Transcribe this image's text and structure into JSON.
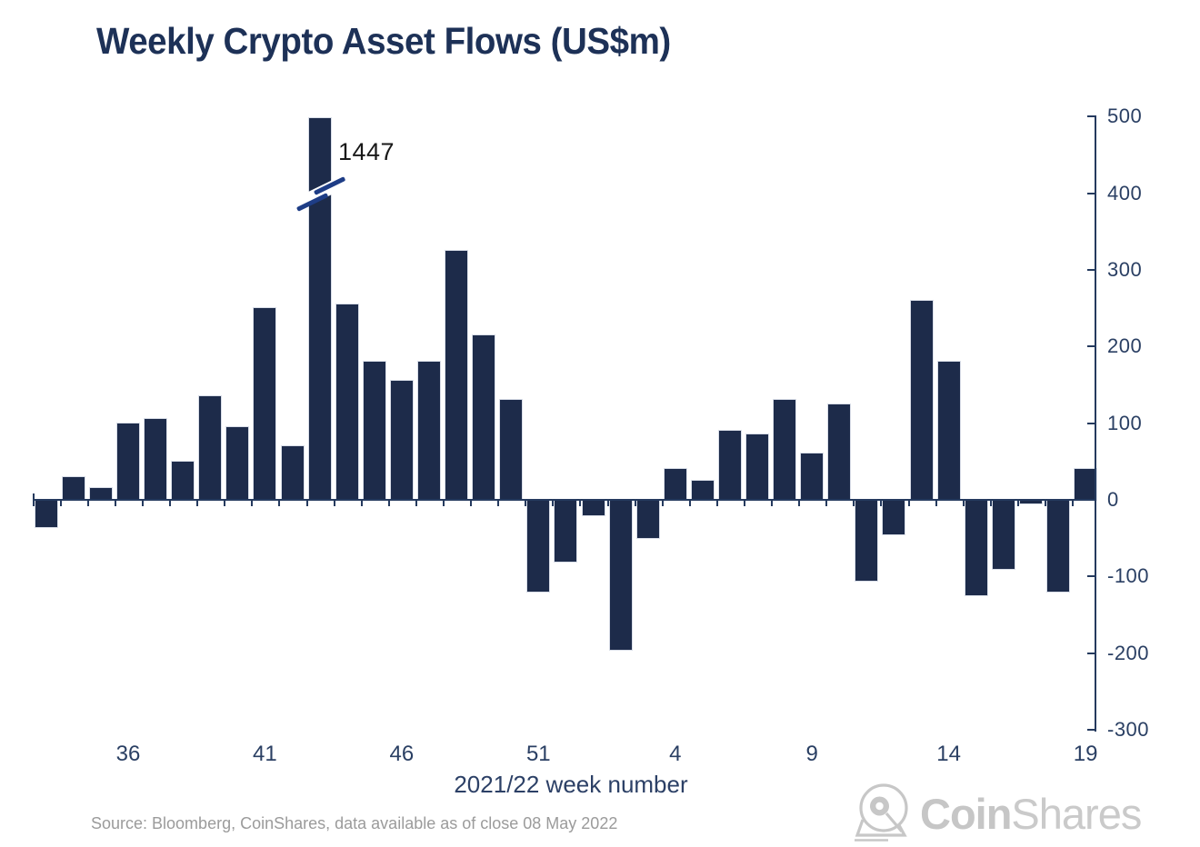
{
  "title": "Weekly Crypto Asset Flows (US$m)",
  "source_note": "Source: Bloomberg, CoinShares, data available as of close 08 May 2022",
  "logo": {
    "icon": "coinshares-helmet-icon",
    "text_bold": "Coin",
    "text_light": "Shares",
    "color": "#c6c6c6"
  },
  "chart_data": {
    "type": "bar",
    "title": "Weekly Crypto Asset Flows (US$m)",
    "xlabel": "2021/22 week number",
    "ylabel": "",
    "ylim": [
      -300,
      500
    ],
    "yticks": [
      500,
      400,
      300,
      200,
      100,
      0,
      -100,
      -200,
      -300
    ],
    "xtick_labels": [
      "36",
      "41",
      "46",
      "51",
      "4",
      "9",
      "14",
      "19"
    ],
    "grid": false,
    "legend_position": "none",
    "bar_color": "#1d2b4a",
    "axis_color": "#253a5e",
    "annotation": {
      "text": "1447",
      "week": "43",
      "note": "bar clipped with axis break marks"
    },
    "series": [
      {
        "name": "Weekly crypto asset flows (US$m)",
        "points": [
          {
            "week": "33",
            "value": -35
          },
          {
            "week": "34",
            "value": 30
          },
          {
            "week": "35",
            "value": 15
          },
          {
            "week": "36",
            "value": 100
          },
          {
            "week": "37",
            "value": 105
          },
          {
            "week": "38",
            "value": 50
          },
          {
            "week": "39",
            "value": 135
          },
          {
            "week": "40",
            "value": 95
          },
          {
            "week": "41",
            "value": 250
          },
          {
            "week": "42",
            "value": 70
          },
          {
            "week": "43",
            "value": 1447,
            "clipped": true
          },
          {
            "week": "44",
            "value": 255
          },
          {
            "week": "45",
            "value": 180
          },
          {
            "week": "46",
            "value": 155
          },
          {
            "week": "47",
            "value": 180
          },
          {
            "week": "48",
            "value": 325
          },
          {
            "week": "49",
            "value": 215
          },
          {
            "week": "50",
            "value": 130
          },
          {
            "week": "51",
            "value": -120
          },
          {
            "week": "52",
            "value": -80
          },
          {
            "week": "1",
            "value": -20
          },
          {
            "week": "2",
            "value": -195
          },
          {
            "week": "3",
            "value": -50
          },
          {
            "week": "4",
            "value": 40
          },
          {
            "week": "5",
            "value": 25
          },
          {
            "week": "6",
            "value": 90
          },
          {
            "week": "7",
            "value": 85
          },
          {
            "week": "8",
            "value": 130
          },
          {
            "week": "9",
            "value": 60
          },
          {
            "week": "10",
            "value": 125
          },
          {
            "week": "11",
            "value": -105
          },
          {
            "week": "12",
            "value": -45
          },
          {
            "week": "13",
            "value": 260
          },
          {
            "week": "14",
            "value": 180
          },
          {
            "week": "15",
            "value": -125
          },
          {
            "week": "16",
            "value": -90
          },
          {
            "week": "17",
            "value": -5
          },
          {
            "week": "18",
            "value": -120
          },
          {
            "week": "19",
            "value": 40
          }
        ]
      }
    ]
  }
}
